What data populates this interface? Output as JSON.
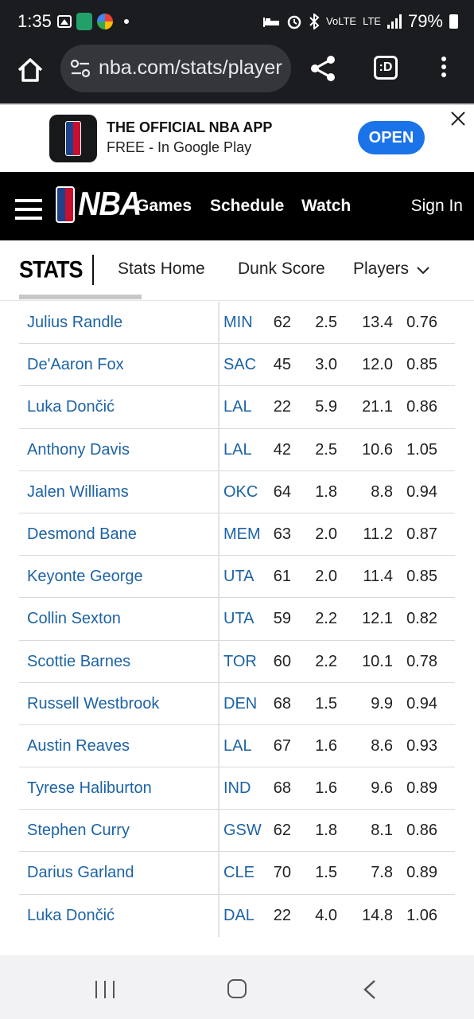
{
  "status_bar": {
    "time": "1:35",
    "network": "LTE",
    "volte": "VoLTE",
    "battery": "79%"
  },
  "browser": {
    "url": "nba.com/stats/player",
    "tabs_count": ":D"
  },
  "app_banner": {
    "title": "THE OFFICIAL NBA APP",
    "subtitle": "FREE - In Google Play",
    "open_label": "OPEN"
  },
  "nav": {
    "logo_text": "NBA",
    "links": [
      "Games",
      "Schedule",
      "Watch"
    ],
    "sign_in": "Sign In"
  },
  "sub_nav": {
    "title": "STATS",
    "links": [
      "Stats Home",
      "Dunk Score",
      "Players"
    ]
  },
  "table": {
    "rows": [
      {
        "name": "Julius Randle",
        "team": "MIN",
        "gp": "62",
        "a": "2.5",
        "b": "13.4",
        "c": "0.76"
      },
      {
        "name": "De'Aaron Fox",
        "team": "SAC",
        "gp": "45",
        "a": "3.0",
        "b": "12.0",
        "c": "0.85"
      },
      {
        "name": "Luka Dončić",
        "team": "LAL",
        "gp": "22",
        "a": "5.9",
        "b": "21.1",
        "c": "0.86"
      },
      {
        "name": "Anthony Davis",
        "team": "LAL",
        "gp": "42",
        "a": "2.5",
        "b": "10.6",
        "c": "1.05"
      },
      {
        "name": "Jalen Williams",
        "team": "OKC",
        "gp": "64",
        "a": "1.8",
        "b": "8.8",
        "c": "0.94"
      },
      {
        "name": "Desmond Bane",
        "team": "MEM",
        "gp": "63",
        "a": "2.0",
        "b": "11.2",
        "c": "0.87"
      },
      {
        "name": "Keyonte George",
        "team": "UTA",
        "gp": "61",
        "a": "2.0",
        "b": "11.4",
        "c": "0.85"
      },
      {
        "name": "Collin Sexton",
        "team": "UTA",
        "gp": "59",
        "a": "2.2",
        "b": "12.1",
        "c": "0.82"
      },
      {
        "name": "Scottie Barnes",
        "team": "TOR",
        "gp": "60",
        "a": "2.2",
        "b": "10.1",
        "c": "0.78"
      },
      {
        "name": "Russell Westbrook",
        "team": "DEN",
        "gp": "68",
        "a": "1.5",
        "b": "9.9",
        "c": "0.94"
      },
      {
        "name": "Austin Reaves",
        "team": "LAL",
        "gp": "67",
        "a": "1.6",
        "b": "8.6",
        "c": "0.93"
      },
      {
        "name": "Tyrese Haliburton",
        "team": "IND",
        "gp": "68",
        "a": "1.6",
        "b": "9.6",
        "c": "0.89"
      },
      {
        "name": "Stephen Curry",
        "team": "GSW",
        "gp": "62",
        "a": "1.8",
        "b": "8.1",
        "c": "0.86"
      },
      {
        "name": "Darius Garland",
        "team": "CLE",
        "gp": "70",
        "a": "1.5",
        "b": "7.8",
        "c": "0.89"
      },
      {
        "name": "Luka Dončić",
        "team": "DAL",
        "gp": "22",
        "a": "4.0",
        "b": "14.8",
        "c": "1.06"
      }
    ]
  },
  "colors": {
    "link_blue": "#1d63a5",
    "nba_blue": "#1d428a",
    "nba_red": "#c8102e",
    "open_button": "#1a73e8"
  },
  "icons": [
    "home-icon",
    "site-settings-icon",
    "share-icon",
    "tab-switcher-icon",
    "overflow-menu-icon",
    "close-icon",
    "hamburger-icon",
    "chevron-down-icon",
    "recents-icon",
    "home-nav-icon",
    "back-icon"
  ]
}
